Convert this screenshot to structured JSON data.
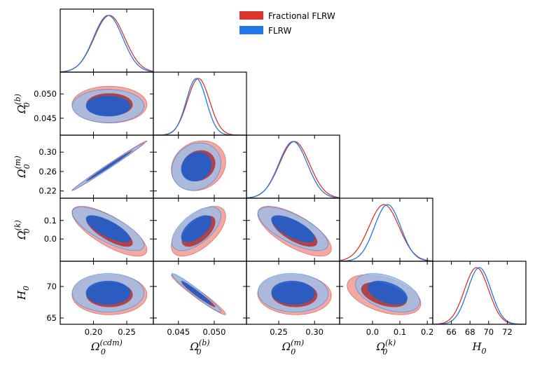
{
  "chart_data": {
    "type": "corner",
    "title": "",
    "series": [
      {
        "name": "Fractional FLRW",
        "color": "#d8362a",
        "fill": "#ef9a92",
        "inner": "#b03636"
      },
      {
        "name": "FLRW",
        "color": "#1f77e8",
        "fill": "#9bbde9",
        "inner": "#1f5fce"
      }
    ],
    "parameters": [
      {
        "key": "cdm",
        "symbol": "Ω",
        "sup": "(cdm)",
        "sub": "0",
        "range": [
          0.15,
          0.29
        ],
        "ticks": [
          "0.20",
          "0.25"
        ],
        "tick_values": [
          0.2,
          0.25
        ]
      },
      {
        "key": "b",
        "symbol": "Ω",
        "sup": "(b)",
        "sub": "0",
        "range": [
          0.0415,
          0.0545
        ],
        "ticks": [
          "0.045",
          "0.050"
        ],
        "tick_values": [
          0.045,
          0.05
        ]
      },
      {
        "key": "m",
        "symbol": "Ω",
        "sup": "(m)",
        "sub": "0",
        "range": [
          0.205,
          0.335
        ],
        "ticks": [
          "0.22",
          "0.26",
          "0.30"
        ],
        "tick_values": [
          0.22,
          0.26,
          0.3
        ],
        "x_ticks": [
          "0.25",
          "0.30"
        ],
        "x_tick_values": [
          0.25,
          0.3
        ]
      },
      {
        "key": "k",
        "symbol": "Ω",
        "sup": "(k)",
        "sub": "0",
        "range": [
          -0.12,
          0.22
        ],
        "ticks": [
          "0.0",
          "0.1"
        ],
        "tick_values": [
          0.0,
          0.1
        ],
        "x_ticks": [
          "0.0",
          "0.1",
          "0.2"
        ],
        "x_tick_values": [
          0.0,
          0.1,
          0.2
        ]
      },
      {
        "key": "H0",
        "symbol": "H",
        "sup": "",
        "sub": "0",
        "range": [
          64.0,
          74.0
        ],
        "ticks": [
          "65",
          "70"
        ],
        "tick_values": [
          65,
          70
        ],
        "x_ticks": [
          "66",
          "68",
          "70",
          "72"
        ],
        "x_tick_values": [
          66,
          68,
          70,
          72
        ]
      }
    ],
    "marginals": {
      "Fractional FLRW": [
        {
          "mean": 0.224,
          "sd": 0.023
        },
        {
          "mean": 0.0478,
          "sd": 0.00155
        },
        {
          "mean": 0.272,
          "sd": 0.021
        },
        {
          "mean": 0.042,
          "sd": 0.055
        },
        {
          "mean": 68.7,
          "sd": 1.3
        }
      ],
      "FLRW": [
        {
          "mean": 0.222,
          "sd": 0.022
        },
        {
          "mean": 0.0475,
          "sd": 0.0014
        },
        {
          "mean": 0.27,
          "sd": 0.02
        },
        {
          "mean": 0.055,
          "sd": 0.048
        },
        {
          "mean": 69.0,
          "sd": 1.25
        }
      ]
    },
    "correlations": {
      "1-0": 0.0,
      "2-0": 0.995,
      "2-1": 0.15,
      "3-0": -0.75,
      "3-1": 0.6,
      "3-2": -0.7,
      "4-0": 0.0,
      "4-1": -0.97,
      "4-2": -0.05,
      "4-3": -0.45
    },
    "legend_position": "upper center"
  }
}
